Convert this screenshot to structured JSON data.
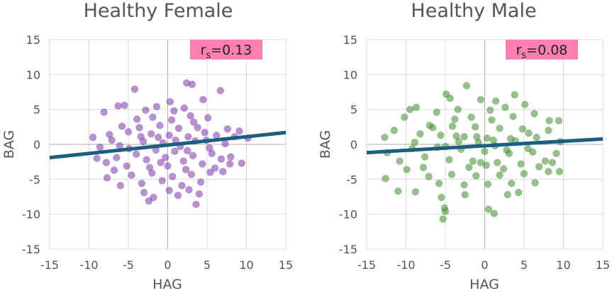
{
  "chart_data": [
    {
      "type": "scatter",
      "title": "Healthy Female",
      "xlabel": "HAG",
      "ylabel": "BAG",
      "xlim": [
        -15,
        15
      ],
      "ylim": [
        -15,
        15
      ],
      "xticks": [
        "-15",
        "-10",
        "-5",
        "0",
        "5",
        "10",
        "15"
      ],
      "yticks": [
        "15",
        "10",
        "5",
        "0",
        "-5",
        "-10",
        "-15"
      ],
      "grid": true,
      "point_color": "#7a35a8",
      "annotation": {
        "base": "r",
        "sub": "s",
        "text": "=0.13"
      },
      "annotation_color": "#ff7fb0",
      "trend_line": {
        "slope": 0.12,
        "intercept": -0.1,
        "x_range": [
          -15,
          15
        ],
        "color": "#1a5e80"
      },
      "series": [
        {
          "name": "Healthy Female",
          "points": [
            [
              -4.2,
              7.9
            ],
            [
              2.4,
              8.8
            ],
            [
              3.1,
              8.6
            ],
            [
              6.7,
              7.7
            ],
            [
              -1.4,
              5.4
            ],
            [
              0.3,
              6.1
            ],
            [
              4.5,
              6.4
            ],
            [
              -8.1,
              4.6
            ],
            [
              -6.3,
              5.5
            ],
            [
              -5.5,
              5.6
            ],
            [
              -2.8,
              4.9
            ],
            [
              0.8,
              4.8
            ],
            [
              2.1,
              5.2
            ],
            [
              3.3,
              3.2
            ],
            [
              5.1,
              3.8
            ],
            [
              7.6,
              2.2
            ],
            [
              9.1,
              1.9
            ],
            [
              10.2,
              0.9
            ],
            [
              8.5,
              1.1
            ],
            [
              -9.5,
              1.0
            ],
            [
              -8.6,
              -0.4
            ],
            [
              -7.4,
              1.4
            ],
            [
              -6.1,
              -0.2
            ],
            [
              -5.0,
              1.8
            ],
            [
              -3.6,
              2.4
            ],
            [
              -2.1,
              1.5
            ],
            [
              -1.0,
              2.7
            ],
            [
              0.2,
              1.3
            ],
            [
              1.4,
              2.3
            ],
            [
              2.6,
              1.1
            ],
            [
              3.8,
              2.4
            ],
            [
              4.9,
              0.6
            ],
            [
              6.2,
              1.3
            ],
            [
              7.3,
              0.1
            ],
            [
              -9.0,
              -2.0
            ],
            [
              -7.8,
              -2.6
            ],
            [
              -6.5,
              -1.9
            ],
            [
              -5.2,
              -3.1
            ],
            [
              -4.0,
              -1.4
            ],
            [
              -2.7,
              -2.2
            ],
            [
              -1.5,
              -0.8
            ],
            [
              -0.3,
              -1.9
            ],
            [
              0.9,
              -1.0
            ],
            [
              2.0,
              -2.4
            ],
            [
              3.2,
              -1.6
            ],
            [
              4.4,
              -2.8
            ],
            [
              5.6,
              -1.3
            ],
            [
              6.8,
              -2.1
            ],
            [
              8.0,
              -1.8
            ],
            [
              -7.7,
              -4.8
            ],
            [
              -6.0,
              -5.9
            ],
            [
              -4.6,
              -4.4
            ],
            [
              -3.3,
              -5.6
            ],
            [
              -2.0,
              -4.1
            ],
            [
              -0.7,
              -5.2
            ],
            [
              0.6,
              -4.6
            ],
            [
              1.8,
              -5.9
            ],
            [
              3.0,
              -4.3
            ],
            [
              4.2,
              -5.4
            ],
            [
              5.4,
              -4.0
            ],
            [
              -3.0,
              -6.9
            ],
            [
              -1.8,
              -7.6
            ],
            [
              0.2,
              -6.6
            ],
            [
              1.3,
              -7.3
            ],
            [
              2.7,
              -6.5
            ],
            [
              4.0,
              -7.1
            ],
            [
              -2.4,
              -8.1
            ],
            [
              3.6,
              -8.6
            ],
            [
              9.4,
              -2.7
            ],
            [
              7.9,
              -2.8
            ],
            [
              -3.9,
              3.6
            ],
            [
              -1.9,
              3.9
            ],
            [
              0.5,
              3.5
            ],
            [
              2.9,
              4.1
            ],
            [
              -4.9,
              -0.6
            ],
            [
              -3.1,
              0.4
            ],
            [
              -0.6,
              0.2
            ],
            [
              1.6,
              -0.3
            ],
            [
              3.5,
              0.5
            ],
            [
              5.3,
              -0.5
            ],
            [
              -5.8,
              2.6
            ],
            [
              -2.3,
              -3.3
            ],
            [
              0.0,
              -3.1
            ],
            [
              2.3,
              -3.6
            ],
            [
              6.0,
              -3.4
            ],
            [
              -7.1,
              0.6
            ],
            [
              -1.2,
              1.0
            ],
            [
              1.0,
              0.6
            ],
            [
              -0.9,
              -2.6
            ],
            [
              2.5,
              -0.9
            ],
            [
              4.7,
              1.7
            ],
            [
              -3.4,
              1.1
            ],
            [
              -6.8,
              -3.7
            ],
            [
              7.0,
              -3.9
            ]
          ]
        }
      ]
    },
    {
      "type": "scatter",
      "title": "Healthy Male",
      "xlabel": "HAG",
      "ylabel": "BAG",
      "xlim": [
        -15,
        15
      ],
      "ylim": [
        -15,
        15
      ],
      "xticks": [
        "-15",
        "-10",
        "-5",
        "0",
        "5",
        "10",
        "15"
      ],
      "yticks": [
        "15",
        "10",
        "5",
        "0",
        "-5",
        "-10",
        "-15"
      ],
      "grid": true,
      "point_color": "#3f8a2c",
      "annotation": {
        "base": "r",
        "sub": "s",
        "text": "=0.08"
      },
      "annotation_color": "#ff7fb0",
      "trend_line": {
        "slope": 0.065,
        "intercept": -0.2,
        "x_range": [
          -15,
          15
        ],
        "color": "#1a5e80"
      },
      "series": [
        {
          "name": "Healthy Male",
          "points": [
            [
              -2.3,
              8.4
            ],
            [
              -4.4,
              6.6
            ],
            [
              -4.9,
              7.2
            ],
            [
              -8.7,
              5.3
            ],
            [
              -9.5,
              5.0
            ],
            [
              -0.5,
              6.4
            ],
            [
              1.4,
              6.2
            ],
            [
              3.8,
              7.1
            ],
            [
              5.1,
              5.7
            ],
            [
              -6.1,
              4.6
            ],
            [
              -3.4,
              5.0
            ],
            [
              0.7,
              4.9
            ],
            [
              2.6,
              5.3
            ],
            [
              6.3,
              4.4
            ],
            [
              8.2,
              3.4
            ],
            [
              9.4,
              3.4
            ],
            [
              -10.2,
              3.9
            ],
            [
              -11.5,
              2.0
            ],
            [
              -12.7,
              1.0
            ],
            [
              -8.2,
              1.5
            ],
            [
              -7.0,
              2.7
            ],
            [
              -5.6,
              1.3
            ],
            [
              -4.1,
              2.6
            ],
            [
              -2.6,
              1.1
            ],
            [
              -1.2,
              2.5
            ],
            [
              0.3,
              0.9
            ],
            [
              1.9,
              2.3
            ],
            [
              3.3,
              0.8
            ],
            [
              4.8,
              2.2
            ],
            [
              6.6,
              1.0
            ],
            [
              8.1,
              2.0
            ],
            [
              9.6,
              0.4
            ],
            [
              -12.4,
              -1.2
            ],
            [
              -10.8,
              -2.4
            ],
            [
              -9.2,
              -0.6
            ],
            [
              -7.6,
              -1.8
            ],
            [
              -6.0,
              -0.4
            ],
            [
              -4.5,
              -2.2
            ],
            [
              -3.0,
              -0.7
            ],
            [
              -1.5,
              -2.4
            ],
            [
              0.0,
              -1.0
            ],
            [
              1.6,
              -2.6
            ],
            [
              3.1,
              -1.3
            ],
            [
              4.6,
              -2.8
            ],
            [
              6.1,
              -1.1
            ],
            [
              7.7,
              -2.4
            ],
            [
              9.1,
              -1.3
            ],
            [
              -12.6,
              -4.9
            ],
            [
              -11.0,
              -6.7
            ],
            [
              -8.8,
              -6.8
            ],
            [
              -7.1,
              -4.6
            ],
            [
              -5.8,
              -5.6
            ],
            [
              -4.2,
              -4.3
            ],
            [
              -2.6,
              -5.8
            ],
            [
              -1.1,
              -4.5
            ],
            [
              0.4,
              -5.7
            ],
            [
              1.9,
              -4.4
            ],
            [
              3.4,
              -5.6
            ],
            [
              5.0,
              -4.2
            ],
            [
              6.4,
              -5.5
            ],
            [
              8.1,
              -3.9
            ],
            [
              9.5,
              -3.9
            ],
            [
              -5.5,
              -7.6
            ],
            [
              -5.1,
              -9.1
            ],
            [
              -5.0,
              -9.6
            ],
            [
              -5.3,
              -10.7
            ],
            [
              0.5,
              -9.3
            ],
            [
              1.2,
              -9.9
            ],
            [
              -2.5,
              -7.2
            ],
            [
              2.9,
              -7.2
            ],
            [
              4.3,
              -6.9
            ],
            [
              -3.8,
              3.6
            ],
            [
              -1.7,
              3.9
            ],
            [
              0.9,
              3.5
            ],
            [
              3.6,
              4.0
            ],
            [
              -5.0,
              -0.3
            ],
            [
              -3.3,
              0.4
            ],
            [
              -0.8,
              0.3
            ],
            [
              1.3,
              -0.2
            ],
            [
              3.9,
              0.5
            ],
            [
              5.5,
              -0.6
            ],
            [
              -6.6,
              2.4
            ],
            [
              -2.0,
              -3.3
            ],
            [
              0.2,
              -3.0
            ],
            [
              2.4,
              -3.5
            ],
            [
              6.9,
              -3.2
            ],
            [
              -8.9,
              0.3
            ],
            [
              -1.0,
              1.1
            ],
            [
              1.1,
              0.6
            ],
            [
              -0.5,
              -2.6
            ],
            [
              2.8,
              -0.8
            ],
            [
              5.6,
              1.6
            ],
            [
              -3.6,
              1.2
            ],
            [
              -7.8,
              -3.3
            ],
            [
              8.6,
              -2.6
            ],
            [
              -9.9,
              -3.6
            ]
          ]
        }
      ]
    }
  ]
}
